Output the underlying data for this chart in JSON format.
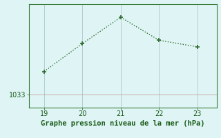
{
  "x": [
    19,
    20,
    21,
    22,
    23
  ],
  "y": [
    1034.4,
    1036.1,
    1037.7,
    1036.3,
    1035.9
  ],
  "xlim": [
    18.6,
    23.5
  ],
  "ylim": [
    1032.2,
    1038.5
  ],
  "yticks": [
    1033
  ],
  "xticks": [
    19,
    20,
    21,
    22,
    23
  ],
  "line_color": "#2d6a2d",
  "marker": "+",
  "marker_size": 5,
  "marker_lw": 1.2,
  "line_width": 1.0,
  "bg_color": "#dff5f5",
  "grid_color_h": "#c8a8a8",
  "grid_color_v": "#b0cccc",
  "title": "Graphe pression niveau de la mer (hPa)",
  "title_color": "#1a5c1a",
  "title_fontsize": 7.5,
  "tick_color": "#1a5c1a",
  "tick_fontsize": 7.0,
  "spine_color": "#3a7a3a",
  "spine_lw": 0.8
}
